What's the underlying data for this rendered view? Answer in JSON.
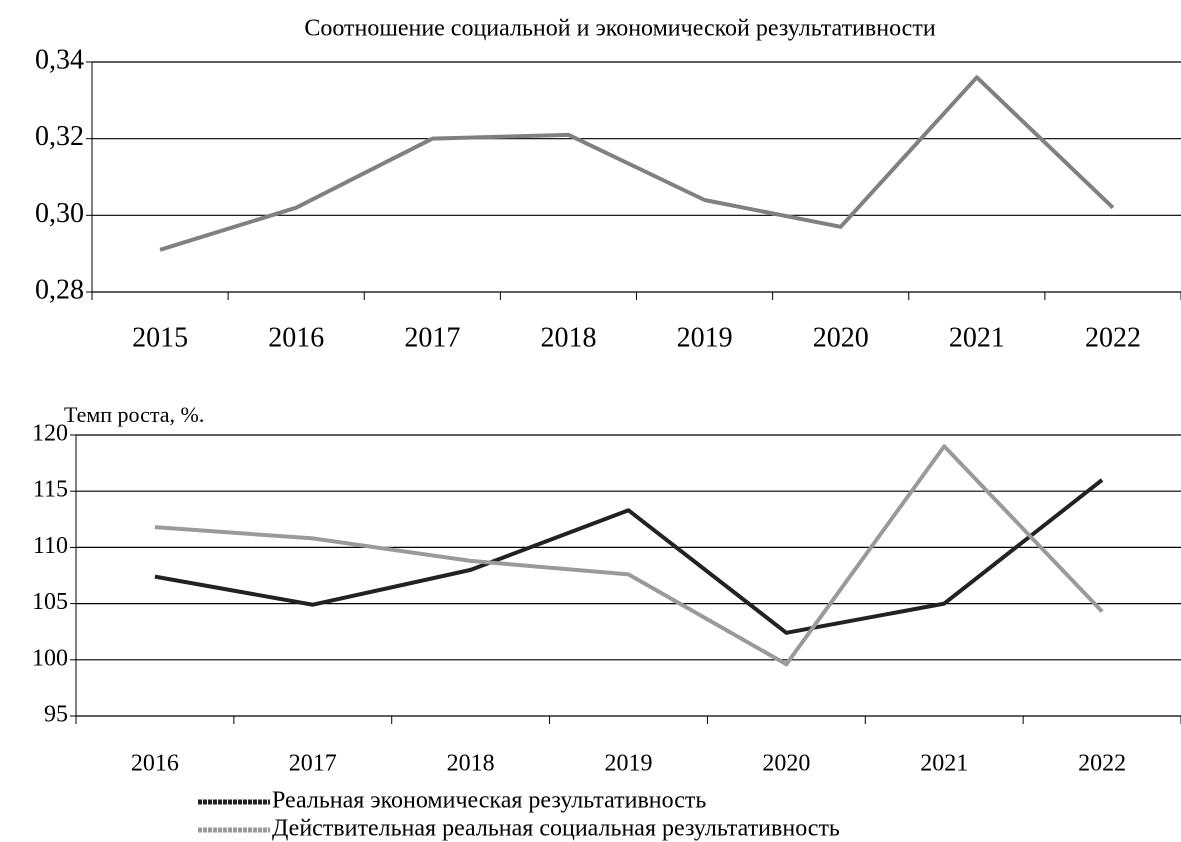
{
  "chart_data": [
    {
      "type": "line",
      "title": "Соотношение социальной и экономической результативности",
      "categories": [
        "2015",
        "2016",
        "2017",
        "2018",
        "2019",
        "2020",
        "2021",
        "2022"
      ],
      "series": [
        {
          "color": "#808080",
          "values": [
            0.291,
            0.302,
            0.32,
            0.321,
            0.304,
            0.297,
            0.336,
            0.302
          ]
        }
      ],
      "ylim": [
        0.28,
        0.34
      ],
      "yticks": [
        {
          "value": 0.28,
          "label": "0,28"
        },
        {
          "value": 0.3,
          "label": "0,30"
        },
        {
          "value": 0.32,
          "label": "0,32"
        },
        {
          "value": 0.34,
          "label": "0,34"
        }
      ],
      "grid": true
    },
    {
      "type": "line",
      "y_label": "Темп роста, %.",
      "categories": [
        "2016",
        "2017",
        "2018",
        "2019",
        "2020",
        "2021",
        "2022"
      ],
      "series": [
        {
          "name": "Реальная экономическая результативность",
          "color": "#222222",
          "values": [
            107.4,
            104.9,
            108.0,
            113.3,
            102.4,
            105.0,
            116.0
          ]
        },
        {
          "name": "Действительная реальная социальная результативность",
          "color": "#9a9a9a",
          "values": [
            111.8,
            110.8,
            108.8,
            107.6,
            99.6,
            119.0,
            104.3
          ]
        }
      ],
      "ylim": [
        95,
        120
      ],
      "yticks": [
        95,
        100,
        105,
        110,
        115,
        120
      ],
      "grid": true
    }
  ]
}
